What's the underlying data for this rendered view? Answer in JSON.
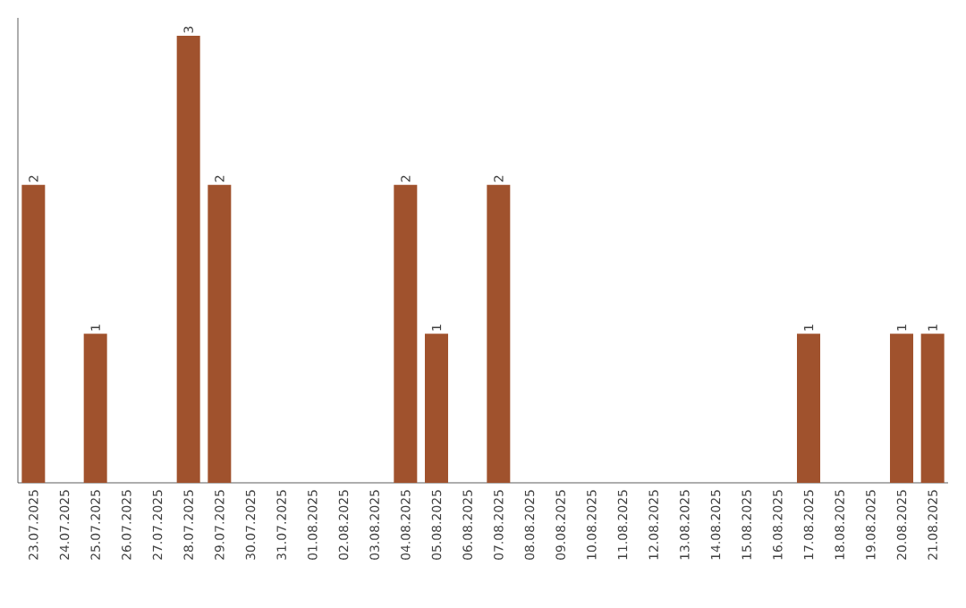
{
  "chart_data": {
    "type": "bar",
    "color": "#a0522d",
    "categories": [
      "23.07.2025",
      "24.07.2025",
      "25.07.2025",
      "26.07.2025",
      "27.07.2025",
      "28.07.2025",
      "29.07.2025",
      "30.07.2025",
      "31.07.2025",
      "01.08.2025",
      "02.08.2025",
      "03.08.2025",
      "04.08.2025",
      "05.08.2025",
      "06.08.2025",
      "07.08.2025",
      "08.08.2025",
      "09.08.2025",
      "10.08.2025",
      "11.08.2025",
      "12.08.2025",
      "13.08.2025",
      "14.08.2025",
      "15.08.2025",
      "16.08.2025",
      "17.08.2025",
      "18.08.2025",
      "19.08.2025",
      "20.08.2025",
      "21.08.2025"
    ],
    "values": [
      2,
      0,
      1,
      0,
      0,
      3,
      2,
      0,
      0,
      0,
      0,
      0,
      2,
      1,
      0,
      2,
      0,
      0,
      0,
      0,
      0,
      0,
      0,
      0,
      0,
      1,
      0,
      0,
      1,
      1
    ],
    "value_labels": [
      "2",
      null,
      "1",
      null,
      null,
      "3",
      "2",
      null,
      null,
      null,
      null,
      null,
      "2",
      "1",
      null,
      "2",
      null,
      null,
      null,
      null,
      null,
      null,
      null,
      null,
      null,
      "1",
      null,
      null,
      "1",
      "1"
    ]
  }
}
